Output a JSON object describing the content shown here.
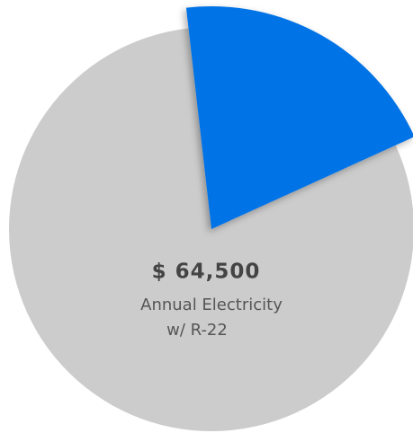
{
  "chart_data": {
    "type": "pie",
    "values": [
      20,
      80
    ],
    "colors": [
      "#0073e6",
      "#cccccc"
    ],
    "annotations": [
      "$ 64,500",
      "Annual Electricity",
      "w/ R-22"
    ]
  }
}
